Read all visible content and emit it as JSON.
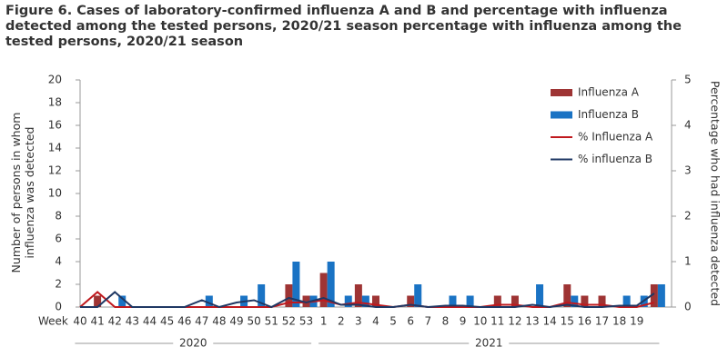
{
  "chart_data": {
    "type": "bar-line",
    "title": "Figure 6. Cases of laboratory-confirmed influenza A and B and percentage with influenza detected among the tested persons, 2020/21 season percentage with influenza among the tested persons, 2020/21 season",
    "y_label": "Number of persons in whom influenza was detected",
    "y2_label": "Percentage who had influenza detected",
    "x_prefix": "Week",
    "years": [
      "2020",
      "2021"
    ],
    "categories": [
      "40",
      "41",
      "42",
      "43",
      "44",
      "45",
      "46",
      "47",
      "48",
      "49",
      "50",
      "51",
      "52",
      "53",
      "1",
      "2",
      "3",
      "4",
      "5",
      "6",
      "7",
      "8",
      "9",
      "10",
      "11",
      "12",
      "13",
      "14",
      "15",
      "16",
      "17",
      "18",
      "19",
      null
    ],
    "series": [
      {
        "name": "Influenza A",
        "kind": "bar",
        "color": "#9e3434",
        "values": [
          0,
          1,
          0,
          0,
          0,
          0,
          0,
          0,
          0,
          0,
          0,
          0,
          2,
          1,
          3,
          0,
          2,
          1,
          0,
          1,
          0,
          0,
          0,
          0,
          1,
          1,
          0,
          0,
          2,
          1,
          1,
          0,
          0,
          2
        ]
      },
      {
        "name": "Influenza B",
        "kind": "bar",
        "color": "#1a73c4",
        "values": [
          0,
          0,
          1,
          0,
          0,
          0,
          0,
          1,
          0,
          1,
          2,
          0,
          4,
          1,
          4,
          1,
          1,
          0,
          0,
          2,
          0,
          1,
          1,
          0,
          0,
          0,
          2,
          0,
          1,
          0,
          0,
          1,
          1,
          2
        ]
      },
      {
        "name": "% Influenza A",
        "kind": "line",
        "axis": "y2",
        "color": "#c0191e",
        "values": [
          0,
          0.33,
          0,
          0,
          0,
          0,
          0,
          0,
          0,
          0,
          0,
          0,
          0.1,
          0.1,
          0.15,
          0.05,
          0.1,
          0.05,
          0,
          0.05,
          0,
          0,
          0,
          0,
          0.05,
          0.05,
          0,
          0,
          0.1,
          0.05,
          0.05,
          0,
          0,
          0.1
        ]
      },
      {
        "name": "% influenza B",
        "kind": "line",
        "axis": "y2",
        "color": "#1f3864",
        "values": [
          0,
          0,
          0.33,
          0,
          0,
          0,
          0,
          0.15,
          0,
          0.1,
          0.15,
          0,
          0.2,
          0.1,
          0.2,
          0.05,
          0.05,
          0,
          0,
          0.05,
          0,
          0.03,
          0.03,
          0,
          0,
          0,
          0.05,
          0,
          0.05,
          0,
          0,
          0.03,
          0.03,
          0.3
        ]
      }
    ],
    "ylim": [
      0,
      20
    ],
    "yticks": [
      0,
      2,
      4,
      6,
      8,
      10,
      12,
      14,
      16,
      18,
      20
    ],
    "y2lim": [
      0,
      5
    ],
    "y2ticks": [
      0,
      1,
      2,
      3,
      4,
      5
    ],
    "legend": "top-right"
  }
}
